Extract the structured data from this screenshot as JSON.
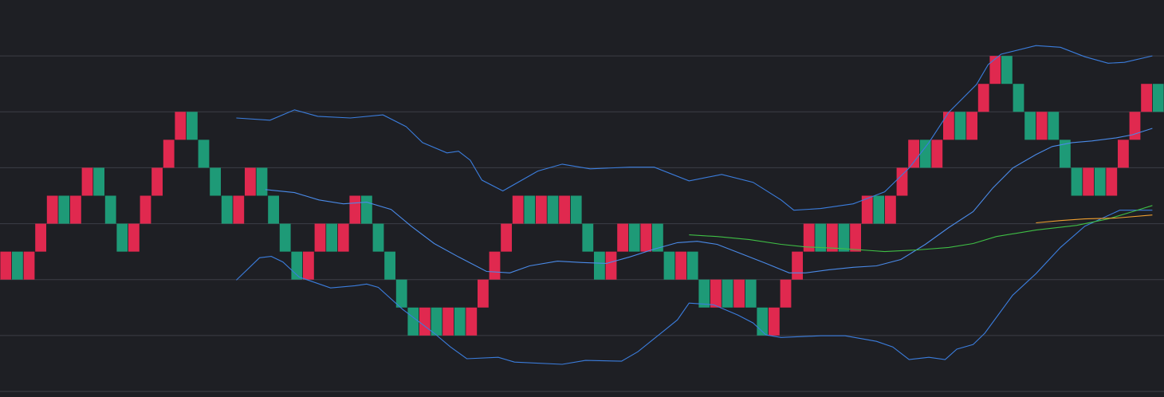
{
  "chart_data": {
    "type": "renko",
    "xlim": [
      0,
      100
    ],
    "ylim": [
      -0.2,
      14
    ],
    "yticks": [
      0,
      2,
      4,
      6,
      8,
      10,
      12
    ],
    "grid": true,
    "brick_size": 1,
    "palette": {
      "r": "#e0294f",
      "g": "#1e9a77"
    },
    "values": [
      4,
      4,
      4,
      5,
      6,
      6,
      6,
      7,
      7,
      6,
      5,
      5,
      6,
      7,
      8,
      9,
      9,
      8,
      7,
      6,
      6,
      7,
      7,
      6,
      5,
      4,
      4,
      5,
      5,
      5,
      6,
      6,
      5,
      4,
      3,
      2,
      2,
      2,
      2,
      2,
      2,
      3,
      4,
      5,
      6,
      6,
      6,
      6,
      6,
      6,
      5,
      4,
      4,
      5,
      5,
      5,
      5,
      4,
      4,
      4,
      3,
      3,
      3,
      3,
      3,
      2,
      2,
      3,
      4,
      5,
      5,
      5,
      5,
      5,
      6,
      6,
      6,
      7,
      8,
      8,
      8,
      9,
      9,
      9,
      10,
      11,
      11,
      10,
      9,
      9,
      9,
      8,
      7,
      7,
      7,
      7,
      8,
      9,
      10,
      10
    ],
    "brick_colors": [
      "r",
      "g",
      "r",
      "r",
      "r",
      "g",
      "r",
      "r",
      "g",
      "g",
      "g",
      "r",
      "r",
      "r",
      "r",
      "r",
      "g",
      "g",
      "g",
      "g",
      "r",
      "r",
      "g",
      "g",
      "g",
      "g",
      "r",
      "r",
      "g",
      "r",
      "r",
      "g",
      "g",
      "g",
      "g",
      "g",
      "r",
      "g",
      "r",
      "g",
      "r",
      "r",
      "r",
      "r",
      "r",
      "g",
      "r",
      "g",
      "r",
      "g",
      "g",
      "g",
      "r",
      "r",
      "g",
      "r",
      "g",
      "g",
      "r",
      "g",
      "g",
      "r",
      "g",
      "r",
      "g",
      "g",
      "r",
      "r",
      "r",
      "r",
      "g",
      "r",
      "g",
      "r",
      "r",
      "g",
      "r",
      "r",
      "r",
      "g",
      "r",
      "r",
      "g",
      "r",
      "r",
      "r",
      "g",
      "g",
      "g",
      "r",
      "g",
      "g",
      "g",
      "r",
      "g",
      "r",
      "r",
      "r",
      "r",
      "g"
    ],
    "lines": [
      {
        "color": "#3b7ddd",
        "x": [
          20.3,
          23.2,
          25.3,
          27.3,
          30.1,
          32.9,
          34.9,
          36.3,
          38.4,
          39.4,
          40.4,
          41.4,
          43.2,
          46.2,
          48.3,
          50.7,
          54.1,
          56.2,
          59.2,
          62.0,
          64.7,
          67.1,
          68.2,
          70.5,
          73.3,
          76.0,
          78.1,
          79.8,
          81.5,
          83.9,
          84.9,
          86.0,
          89.0,
          91.1,
          93.2,
          95.2,
          96.6,
          99.0
        ],
        "values": [
          9.78,
          9.7,
          10.07,
          9.84,
          9.78,
          9.89,
          9.47,
          8.9,
          8.53,
          8.59,
          8.27,
          7.56,
          7.17,
          7.88,
          8.13,
          7.96,
          8.02,
          8.02,
          7.53,
          7.76,
          7.48,
          6.85,
          6.48,
          6.54,
          6.71,
          7.14,
          7.99,
          8.9,
          9.98,
          10.98,
          11.69,
          12.06,
          12.37,
          12.31,
          11.97,
          11.74,
          11.77,
          12.0
        ]
      },
      {
        "color": "#3b7ddd",
        "x": [
          20.3,
          22.3,
          23.3,
          24.3,
          25.7,
          28.4,
          30.5,
          31.5,
          32.5,
          34.6,
          37.3,
          38.7,
          40.1,
          42.8,
          44.2,
          48.3,
          50.3,
          53.4,
          54.8,
          57.2,
          58.2,
          59.2,
          61.3,
          63.4,
          64.7,
          65.8,
          67.1,
          70.5,
          72.6,
          75.3,
          76.7,
          78.1,
          79.8,
          81.2,
          82.2,
          83.6,
          84.6,
          87.0,
          89.0,
          91.1,
          93.2,
          96.2,
          99.0
        ],
        "values": [
          3.98,
          4.78,
          4.83,
          4.63,
          4.09,
          3.7,
          3.78,
          3.84,
          3.72,
          2.93,
          2.08,
          1.59,
          1.17,
          1.22,
          1.05,
          0.97,
          1.11,
          1.08,
          1.42,
          2.22,
          2.56,
          3.16,
          3.1,
          2.73,
          2.45,
          2.02,
          1.93,
          1.99,
          1.99,
          1.79,
          1.59,
          1.14,
          1.22,
          1.14,
          1.51,
          1.68,
          2.08,
          3.44,
          4.21,
          5.15,
          5.91,
          6.48,
          6.48
        ]
      },
      {
        "color": "#4a8ae8",
        "x": [
          22.8,
          25.3,
          27.4,
          29.5,
          31.5,
          33.6,
          35.3,
          37.3,
          39.4,
          41.8,
          43.8,
          45.5,
          47.9,
          50.0,
          52.1,
          54.1,
          56.2,
          58.2,
          59.9,
          61.6,
          63.7,
          65.8,
          67.8,
          69.2,
          71.2,
          73.3,
          75.3,
          77.4,
          79.5,
          81.5,
          83.6,
          85.3,
          87.0,
          89.0,
          90.4,
          92.1,
          93.8,
          95.9,
          97.3,
          99.0
        ],
        "values": [
          7.22,
          7.11,
          6.85,
          6.71,
          6.77,
          6.51,
          5.92,
          5.29,
          4.81,
          4.29,
          4.24,
          4.49,
          4.66,
          4.61,
          4.58,
          4.81,
          5.09,
          5.32,
          5.37,
          5.26,
          4.92,
          4.58,
          4.24,
          4.24,
          4.35,
          4.44,
          4.49,
          4.72,
          5.26,
          5.86,
          6.43,
          7.28,
          7.99,
          8.47,
          8.76,
          8.9,
          8.96,
          9.07,
          9.18,
          9.41
        ]
      },
      {
        "color": "#3fbf45",
        "x": [
          59.2,
          61.6,
          64.4,
          67.1,
          69.2,
          71.9,
          74.0,
          76.0,
          78.8,
          81.5,
          83.6,
          85.6,
          89.0,
          92.5,
          95.2,
          97.3,
          99.0
        ],
        "values": [
          5.6,
          5.54,
          5.43,
          5.26,
          5.17,
          5.12,
          5.06,
          5.0,
          5.06,
          5.15,
          5.29,
          5.54,
          5.77,
          5.94,
          6.17,
          6.43,
          6.65
        ]
      },
      {
        "color": "#f0a030",
        "x": [
          89.0,
          91.1,
          93.2,
          95.9,
          99.0
        ],
        "values": [
          6.03,
          6.11,
          6.17,
          6.2,
          6.31
        ]
      }
    ]
  }
}
